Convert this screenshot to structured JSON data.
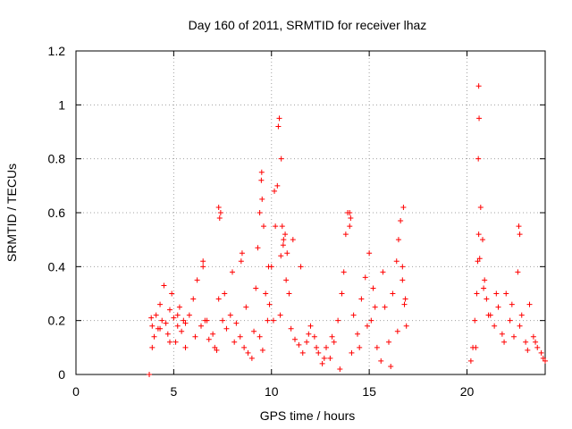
{
  "chart_data": {
    "type": "scatter",
    "title": "Day 160 of 2011, SRMTID for receiver lhaz",
    "xlabel": "GPS time / hours",
    "ylabel": "SRMTID / TECUs",
    "xlim": [
      0,
      24
    ],
    "ylim": [
      0,
      1.2
    ],
    "x_ticks": [
      "0",
      "5",
      "10",
      "15",
      "20"
    ],
    "y_ticks": [
      "0",
      "0.2",
      "0.4",
      "0.6",
      "0.8",
      "1",
      "1.2"
    ],
    "grid": true,
    "marker": "+",
    "series": [
      {
        "name": "SRMTID",
        "color": "#ff0000",
        "x": [
          3.75,
          3.85,
          3.9,
          4.0,
          4.1,
          4.2,
          4.3,
          4.4,
          4.5,
          4.6,
          4.7,
          4.8,
          4.9,
          5.0,
          5.1,
          5.2,
          5.3,
          5.4,
          5.5,
          5.6,
          5.8,
          6.0,
          6.2,
          6.4,
          6.5,
          6.6,
          6.8,
          7.0,
          7.2,
          7.3,
          7.4,
          7.5,
          7.7,
          7.9,
          8.0,
          8.2,
          8.4,
          8.6,
          8.8,
          9.0,
          9.1,
          9.2,
          9.3,
          9.4,
          9.5,
          9.6,
          9.7,
          9.8,
          9.9,
          10.0,
          10.1,
          10.2,
          10.3,
          10.35,
          10.4,
          10.5,
          10.6,
          10.7,
          10.8,
          10.9,
          11.0,
          11.2,
          11.4,
          11.6,
          11.8,
          12.0,
          12.2,
          12.4,
          12.6,
          12.8,
          13.0,
          13.2,
          13.4,
          13.6,
          13.7,
          13.8,
          13.9,
          14.0,
          14.2,
          14.4,
          14.6,
          14.8,
          15.0,
          15.1,
          15.2,
          15.4,
          15.6,
          15.8,
          16.0,
          16.2,
          16.4,
          16.5,
          16.6,
          16.7,
          16.8,
          16.9,
          20.2,
          20.3,
          20.4,
          20.5,
          20.55,
          20.6,
          20.7,
          20.8,
          20.9,
          21.0,
          21.2,
          21.4,
          21.6,
          21.8,
          22.0,
          22.2,
          22.4,
          22.6,
          22.8,
          23.0,
          23.2,
          23.4,
          23.6,
          23.8,
          24.0,
          3.9,
          4.3,
          4.8,
          5.2,
          5.6,
          6.1,
          6.7,
          7.1,
          7.6,
          8.1,
          8.7,
          9.4,
          9.55,
          9.85,
          10.15,
          10.45,
          10.75,
          11.1,
          11.5,
          11.9,
          12.3,
          12.7,
          13.1,
          13.5,
          14.1,
          14.5,
          14.9,
          15.3,
          15.7,
          16.1,
          16.45,
          16.85,
          20.45,
          20.65,
          20.85,
          21.1,
          21.5,
          21.9,
          22.3,
          22.7,
          23.1,
          23.5,
          23.9,
          10.55,
          10.62,
          10.48,
          9.52,
          9.48,
          14.05,
          14.0,
          16.7,
          16.75,
          20.6,
          20.62,
          20.58,
          22.65,
          22.7,
          7.3,
          7.35,
          6.5,
          8.5,
          8.45
        ],
        "y": [
          0.0,
          0.21,
          0.18,
          0.14,
          0.22,
          0.17,
          0.26,
          0.2,
          0.33,
          0.19,
          0.15,
          0.24,
          0.3,
          0.21,
          0.12,
          0.18,
          0.25,
          0.16,
          0.2,
          0.1,
          0.22,
          0.28,
          0.35,
          0.18,
          0.4,
          0.2,
          0.13,
          0.15,
          0.09,
          0.28,
          0.6,
          0.2,
          0.17,
          0.22,
          0.38,
          0.19,
          0.14,
          0.1,
          0.08,
          0.06,
          0.16,
          0.32,
          0.47,
          0.6,
          0.75,
          0.55,
          0.3,
          0.2,
          0.26,
          0.4,
          0.2,
          0.55,
          0.7,
          0.92,
          0.95,
          0.8,
          0.48,
          0.52,
          0.45,
          0.3,
          0.17,
          0.13,
          0.11,
          0.08,
          0.12,
          0.18,
          0.14,
          0.08,
          0.04,
          0.1,
          0.06,
          0.12,
          0.2,
          0.3,
          0.38,
          0.52,
          0.6,
          0.55,
          0.22,
          0.15,
          0.28,
          0.36,
          0.45,
          0.2,
          0.32,
          0.1,
          0.05,
          0.25,
          0.12,
          0.3,
          0.42,
          0.5,
          0.57,
          0.4,
          0.26,
          0.18,
          0.05,
          0.1,
          0.2,
          0.3,
          0.42,
          0.52,
          0.62,
          0.5,
          0.35,
          0.28,
          0.22,
          0.18,
          0.25,
          0.15,
          0.3,
          0.2,
          0.14,
          0.38,
          0.22,
          0.12,
          0.26,
          0.14,
          0.1,
          0.08,
          0.05,
          0.1,
          0.17,
          0.12,
          0.22,
          0.19,
          0.14,
          0.2,
          0.1,
          0.3,
          0.12,
          0.25,
          0.14,
          0.09,
          0.4,
          0.68,
          0.22,
          0.35,
          0.5,
          0.4,
          0.15,
          0.1,
          0.06,
          0.14,
          0.02,
          0.08,
          0.1,
          0.18,
          0.25,
          0.38,
          0.03,
          0.16,
          0.28,
          0.1,
          0.43,
          0.32,
          0.22,
          0.3,
          0.12,
          0.26,
          0.18,
          0.09,
          0.12,
          0.06,
          0.55,
          0.5,
          0.44,
          0.65,
          0.72,
          0.58,
          0.6,
          0.35,
          0.62,
          1.07,
          0.95,
          0.8,
          0.55,
          0.52,
          0.62,
          0.58,
          0.42,
          0.45,
          0.42
        ]
      }
    ]
  }
}
